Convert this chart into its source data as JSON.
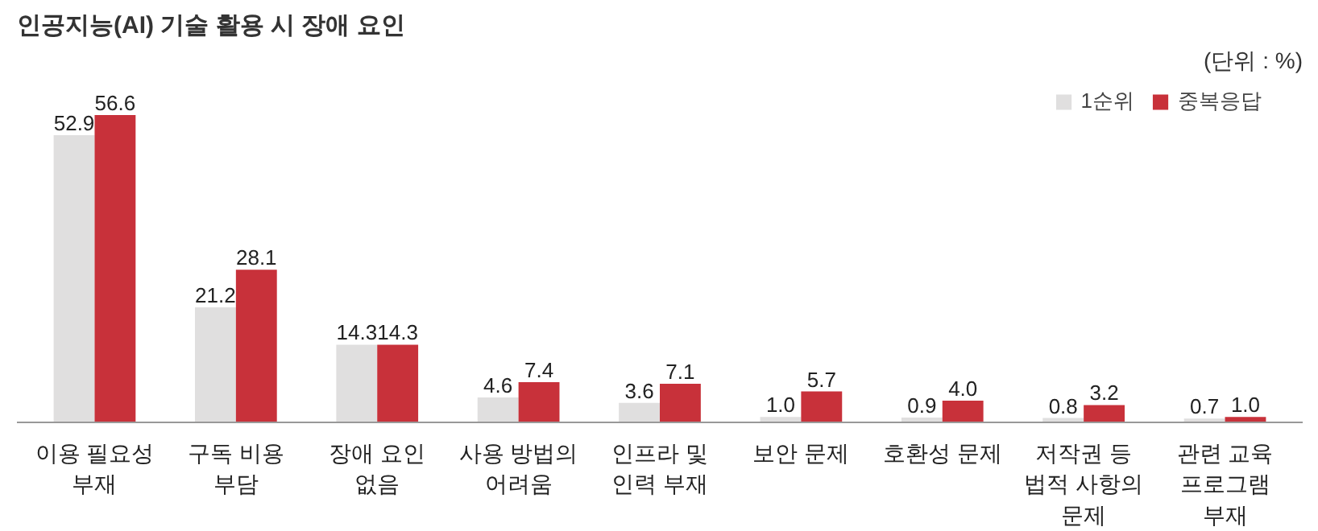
{
  "chart_data": {
    "type": "bar",
    "title": "인공지능(AI) 기술 활용 시 장애 요인",
    "annotations": [
      "(단위 : %)"
    ],
    "categories": [
      "이용 필요성\n부재",
      "구독 비용\n부담",
      "장애 요인\n없음",
      "사용 방법의\n어려움",
      "인프라 및\n인력 부재",
      "보안 문제",
      "호환성 문제",
      "저작권 등\n법적 사항의\n문제",
      "관련 교육\n프로그램\n부재"
    ],
    "series": [
      {
        "name": "1순위",
        "color": "#e0dfdf",
        "values": [
          52.9,
          21.2,
          14.3,
          4.6,
          3.6,
          1.0,
          0.9,
          0.8,
          0.7
        ],
        "value_labels": [
          "52.9",
          "21.2",
          "14.3",
          "4.6",
          "3.6",
          "1.0",
          "0.9",
          "0.8",
          "0.7"
        ]
      },
      {
        "name": "중복응답",
        "color": "#c8313a",
        "values": [
          56.6,
          28.1,
          14.3,
          7.4,
          7.1,
          5.7,
          4.0,
          3.2,
          1.0
        ],
        "value_labels": [
          "56.6",
          "28.1",
          "14.3",
          "7.4",
          "7.1",
          "5.7",
          "4.0",
          "3.2",
          "1.0"
        ]
      }
    ],
    "legend": "top right",
    "grid": false
  }
}
